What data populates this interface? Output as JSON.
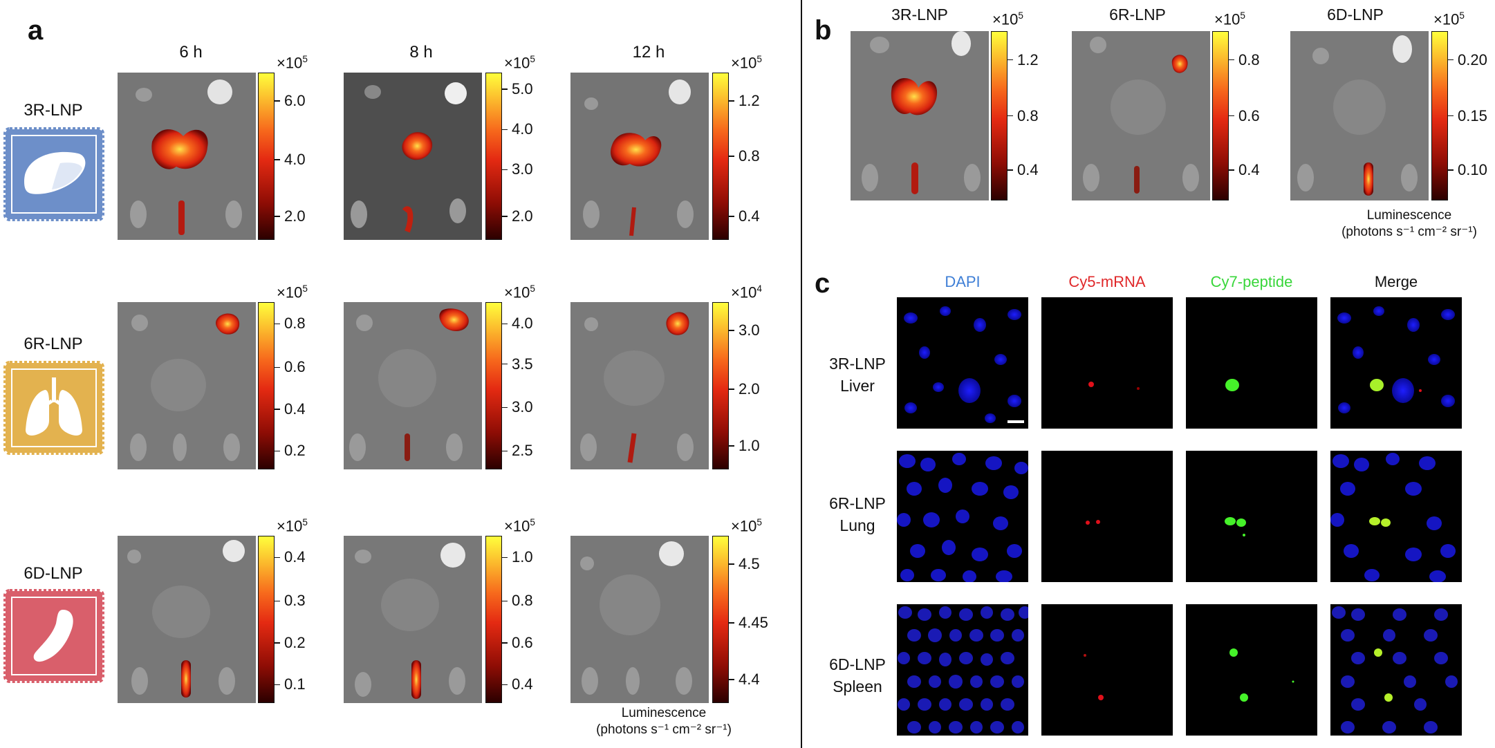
{
  "panel_a": {
    "letter": "a",
    "times": [
      "6 h",
      "8 h",
      "12 h"
    ],
    "rows": [
      {
        "label": "3R-LNP",
        "icon": "liver-icon",
        "icon_color": "#6d8fc9",
        "scales": [
          {
            "mult": "×10",
            "exp": "5",
            "ticks": [
              "6.0",
              "4.0",
              "2.0"
            ],
            "fractions": [
              0.83,
              0.48,
              0.14
            ]
          },
          {
            "mult": "×10",
            "exp": "5",
            "ticks": [
              "5.0",
              "4.0",
              "3.0",
              "2.0"
            ],
            "fractions": [
              0.9,
              0.66,
              0.42,
              0.14
            ]
          },
          {
            "mult": "×10",
            "exp": "5",
            "ticks": [
              "1.2",
              "0.8",
              "0.4"
            ],
            "fractions": [
              0.83,
              0.5,
              0.14
            ]
          }
        ]
      },
      {
        "label": "6R-LNP",
        "icon": "lungs-icon",
        "icon_color": "#e3b24f",
        "scales": [
          {
            "mult": "×10",
            "exp": "5",
            "ticks": [
              "0.8",
              "0.6",
              "0.4",
              "0.2"
            ],
            "fractions": [
              0.87,
              0.61,
              0.36,
              0.11
            ]
          },
          {
            "mult": "×10",
            "exp": "5",
            "ticks": [
              "4.0",
              "3.5",
              "3.0",
              "2.5"
            ],
            "fractions": [
              0.87,
              0.63,
              0.37,
              0.11
            ]
          },
          {
            "mult": "×10",
            "exp": "4",
            "ticks": [
              "3.0",
              "2.0",
              "1.0"
            ],
            "fractions": [
              0.83,
              0.48,
              0.14
            ]
          }
        ]
      },
      {
        "label": "6D-LNP",
        "icon": "spleen-icon",
        "icon_color": "#d95f6b",
        "scales": [
          {
            "mult": "×10",
            "exp": "5",
            "ticks": [
              "0.4",
              "0.3",
              "0.2",
              "0.1"
            ],
            "fractions": [
              0.87,
              0.61,
              0.36,
              0.11
            ]
          },
          {
            "mult": "×10",
            "exp": "5",
            "ticks": [
              "1.0",
              "0.8",
              "0.6",
              "0.4"
            ],
            "fractions": [
              0.87,
              0.61,
              0.36,
              0.11
            ]
          },
          {
            "mult": "×10",
            "exp": "5",
            "ticks": [
              "4.5",
              "4.45",
              "4.4"
            ],
            "fractions": [
              0.83,
              0.48,
              0.14
            ]
          }
        ]
      }
    ],
    "lum_line1": "Luminescence",
    "lum_line2": "(photons s⁻¹ cm⁻² sr⁻¹)"
  },
  "panel_b": {
    "letter": "b",
    "items": [
      {
        "label": "3R-LNP",
        "mult": "×10",
        "exp": "5",
        "ticks": [
          "1.2",
          "0.8",
          "0.4"
        ],
        "fractions": [
          0.83,
          0.5,
          0.18
        ]
      },
      {
        "label": "6R-LNP",
        "mult": "×10",
        "exp": "5",
        "ticks": [
          "0.8",
          "0.6",
          "0.4"
        ],
        "fractions": [
          0.83,
          0.5,
          0.18
        ]
      },
      {
        "label": "6D-LNP",
        "mult": "×10",
        "exp": "5",
        "ticks": [
          "0.20",
          "0.15",
          "0.10"
        ],
        "fractions": [
          0.83,
          0.5,
          0.18
        ]
      }
    ],
    "lum_line1": "Luminescence",
    "lum_line2": "(photons s⁻¹ cm⁻² sr⁻¹)"
  },
  "panel_c": {
    "letter": "c",
    "columns": [
      {
        "label": "DAPI",
        "color": "#3f7fd6"
      },
      {
        "label": "Cy5-mRNA",
        "color": "#e0282a"
      },
      {
        "label": "Cy7-peptide",
        "color": "#38d63a"
      },
      {
        "label": "Merge",
        "color": "#111111"
      }
    ],
    "rows": [
      {
        "line1": "3R-LNP",
        "line2": "Liver"
      },
      {
        "line1": "6R-LNP",
        "line2": "Lung"
      },
      {
        "line1": "6D-LNP",
        "line2": "Spleen"
      }
    ]
  }
}
